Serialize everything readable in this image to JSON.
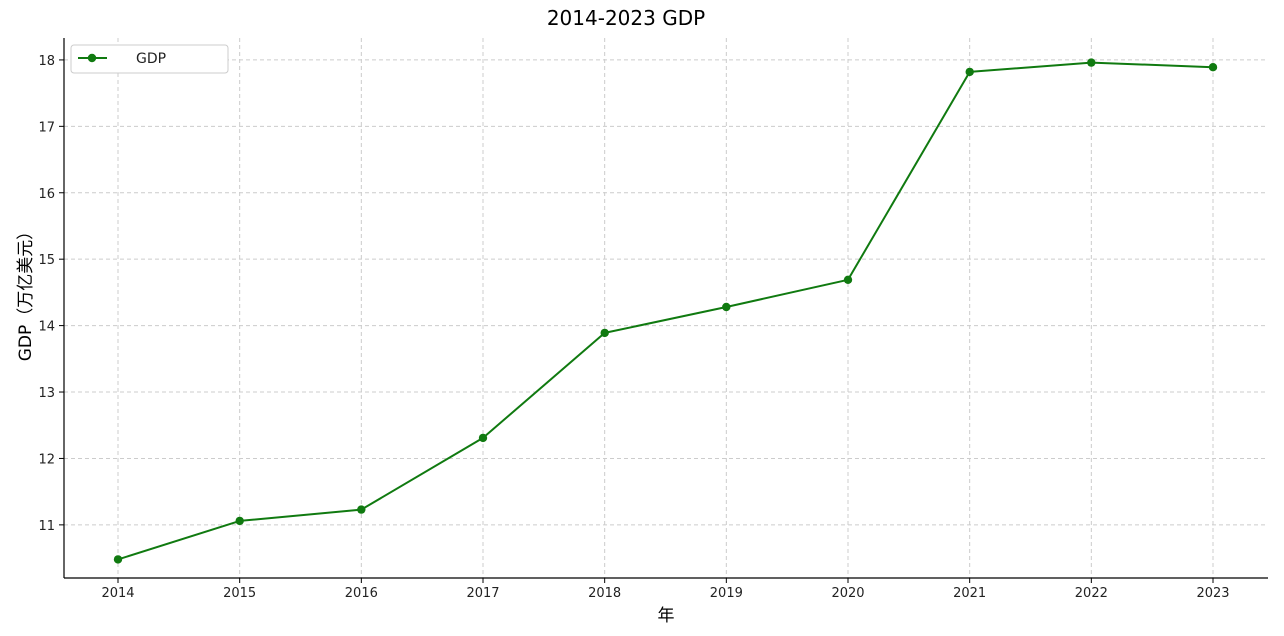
{
  "chart_data": {
    "type": "line",
    "title": "2014-2023 GDP",
    "xlabel": "年",
    "ylabel": "GDP（万亿美元）",
    "x": [
      "2014",
      "2015",
      "2016",
      "2017",
      "2018",
      "2019",
      "2020",
      "2021",
      "2022",
      "2023"
    ],
    "series": [
      {
        "name": "GDP",
        "values": [
          10.48,
          11.06,
          11.23,
          12.31,
          13.89,
          14.28,
          14.69,
          17.82,
          17.96,
          17.89
        ],
        "color": "#107a10",
        "marker": "circle"
      }
    ],
    "ylim": [
      10.2,
      18.33
    ],
    "yticks": [
      11,
      12,
      13,
      14,
      15,
      16,
      17,
      18
    ],
    "grid": true,
    "grid_style": "dashed",
    "legend_position": "top-left"
  }
}
